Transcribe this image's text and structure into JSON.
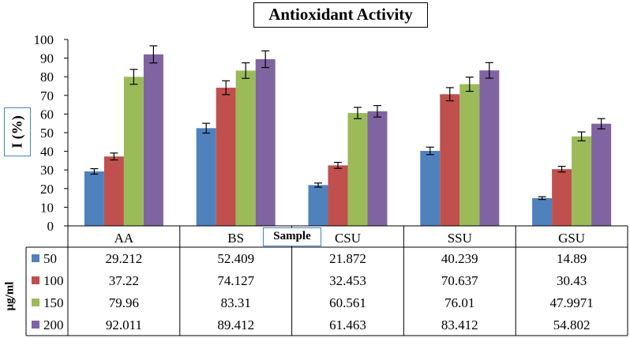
{
  "chart_data": {
    "type": "bar",
    "title": "Antioxidant Activity",
    "ylabel": "I (%)",
    "xlabel": "Sample",
    "unit_label": "μg/ml",
    "categories": [
      "AA",
      "BS",
      "CSU",
      "SSU",
      "GSU"
    ],
    "ylim": [
      0,
      100
    ],
    "yticks": [
      0,
      10,
      20,
      30,
      40,
      50,
      60,
      70,
      80,
      90,
      100
    ],
    "grid": false,
    "legend": "data-table",
    "series": [
      {
        "name": "50",
        "color": "#4f81bd",
        "values": [
          29.212,
          52.409,
          21.872,
          40.239,
          14.89
        ],
        "labels": [
          "29.212",
          "52.409",
          "21.872",
          "40.239",
          "14.89"
        ]
      },
      {
        "name": "100",
        "color": "#c0504d",
        "values": [
          37.22,
          74.127,
          32.453,
          70.637,
          30.43
        ],
        "labels": [
          "37.22",
          "74.127",
          "32.453",
          "70.637",
          "30.43"
        ]
      },
      {
        "name": "150",
        "color": "#9bbb59",
        "values": [
          79.96,
          83.31,
          60.561,
          76.01,
          47.9971
        ],
        "labels": [
          "79.96",
          "83.31",
          "60.561",
          "76.01",
          "47.9971"
        ]
      },
      {
        "name": "200",
        "color": "#8064a2",
        "values": [
          92.011,
          89.412,
          61.463,
          83.412,
          54.802
        ],
        "labels": [
          "92.011",
          "89.412",
          "61.463",
          "83.412",
          "54.802"
        ]
      }
    ],
    "error_bars": "5%"
  }
}
